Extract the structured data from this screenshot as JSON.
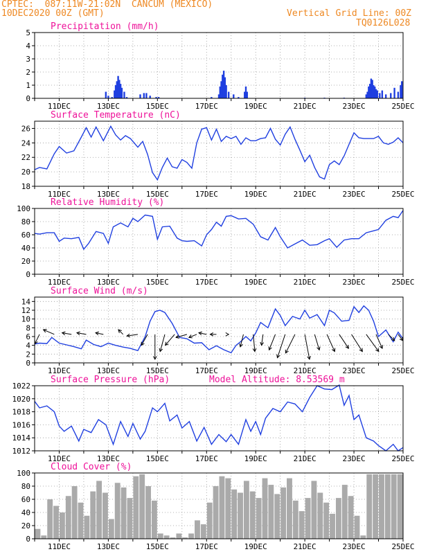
{
  "header": {
    "line1": "CPTEC:  087:11W-21:02N  CANCUM (MEXICO)",
    "line2": "10DEC2020 00Z (GMT)",
    "right1": "Vertical Grid Line: 00Z",
    "right2": "TQ0126L028"
  },
  "colors": {
    "header": "#ee8822",
    "title": "#ee1199",
    "line": "#1f3fe0",
    "bar": "#1f3fe0",
    "cloud": "#aaaaaa",
    "grid": "#999999",
    "arrow": "#000000"
  },
  "chart_data": [
    {
      "type": "bar",
      "title": "Precipitation (mm/h)",
      "ylim": [
        0,
        5
      ],
      "yticks": [
        0,
        1,
        2,
        3,
        4,
        5
      ],
      "xlim_days": [
        10.0,
        25.0
      ],
      "xticks": [
        "11DEC",
        "13DEC",
        "15DEC",
        "17DEC",
        "19DEC",
        "21DEC",
        "23DEC",
        "25DEC"
      ],
      "x": [
        12.9,
        13.0,
        13.15,
        13.25,
        13.3,
        13.35,
        13.4,
        13.45,
        13.5,
        13.55,
        13.65,
        13.75,
        14.3,
        14.45,
        14.55,
        14.7,
        14.95,
        15.05,
        17.2,
        17.5,
        17.55,
        17.6,
        17.65,
        17.7,
        17.75,
        17.8,
        17.9,
        18.1,
        18.3,
        18.55,
        18.6,
        18.65,
        21.0,
        21.8,
        22.6,
        23.5,
        23.55,
        23.6,
        23.65,
        23.7,
        23.75,
        23.8,
        23.85,
        23.9,
        23.95,
        24.05,
        24.15,
        24.3,
        24.5,
        24.65,
        24.8,
        24.9,
        24.95
      ],
      "values": [
        0.5,
        0.2,
        0.1,
        0.6,
        1.0,
        1.3,
        1.7,
        1.4,
        1.1,
        0.8,
        0.5,
        0.1,
        0.3,
        0.4,
        0.4,
        0.2,
        0.1,
        0.1,
        0.1,
        0.3,
        0.9,
        1.3,
        1.8,
        2.1,
        1.6,
        1.0,
        0.5,
        0.3,
        0.1,
        0.5,
        0.9,
        0.5,
        0.05,
        0.05,
        0.05,
        0.3,
        0.5,
        0.9,
        1.1,
        1.5,
        1.4,
        1.0,
        0.9,
        0.7,
        0.6,
        0.4,
        0.6,
        0.3,
        0.4,
        0.8,
        0.5,
        1.0,
        1.3
      ]
    },
    {
      "type": "line",
      "title": "Surface Temperature (nC)",
      "ylim": [
        18,
        27
      ],
      "yticks": [
        18,
        20,
        22,
        24,
        26
      ],
      "xlim_days": [
        10.0,
        25.0
      ],
      "xticks": [
        "11DEC",
        "13DEC",
        "15DEC",
        "17DEC",
        "19DEC",
        "21DEC",
        "23DEC",
        "25DEC"
      ],
      "x": [
        10.0,
        10.2,
        10.5,
        10.8,
        11.0,
        11.3,
        11.6,
        11.9,
        12.1,
        12.3,
        12.5,
        12.8,
        13.1,
        13.3,
        13.5,
        13.7,
        13.9,
        14.2,
        14.4,
        14.6,
        14.8,
        15.0,
        15.2,
        15.4,
        15.6,
        15.8,
        16.0,
        16.2,
        16.4,
        16.6,
        16.8,
        17.0,
        17.2,
        17.4,
        17.6,
        17.8,
        18.0,
        18.2,
        18.4,
        18.6,
        18.8,
        19.0,
        19.2,
        19.4,
        19.6,
        19.8,
        20.0,
        20.2,
        20.4,
        20.6,
        20.8,
        21.0,
        21.2,
        21.4,
        21.6,
        21.8,
        22.0,
        22.2,
        22.4,
        22.6,
        22.8,
        23.0,
        23.2,
        23.4,
        23.6,
        23.8,
        24.0,
        24.2,
        24.4,
        24.6,
        24.8,
        25.0
      ],
      "values": [
        20.3,
        20.6,
        20.4,
        22.5,
        23.5,
        22.6,
        22.9,
        24.8,
        26.1,
        24.8,
        26.2,
        24.3,
        26.3,
        25.1,
        24.4,
        25.0,
        24.6,
        23.4,
        24.2,
        22.4,
        19.9,
        18.9,
        20.6,
        21.9,
        20.7,
        20.5,
        21.7,
        21.3,
        20.5,
        24.0,
        25.9,
        26.1,
        24.4,
        25.9,
        24.2,
        24.9,
        24.6,
        24.9,
        23.8,
        24.7,
        24.3,
        24.3,
        24.6,
        24.7,
        26.0,
        24.5,
        23.7,
        25.2,
        26.2,
        24.5,
        23.0,
        21.4,
        22.3,
        20.6,
        19.3,
        19.0,
        21.0,
        21.5,
        21.0,
        22.2,
        23.8,
        25.4,
        24.7,
        24.6,
        24.6,
        24.6,
        24.9,
        24.0,
        23.8,
        24.1,
        24.7,
        24.0
      ]
    },
    {
      "type": "line",
      "title": "Relative Humidity (%)",
      "ylim": [
        0,
        100
      ],
      "yticks": [
        0,
        20,
        40,
        60,
        80,
        100
      ],
      "xlim_days": [
        10.0,
        25.0
      ],
      "xticks": [
        "11DEC",
        "13DEC",
        "15DEC",
        "17DEC",
        "19DEC",
        "21DEC",
        "23DEC",
        "25DEC"
      ],
      "x": [
        10.0,
        10.2,
        10.5,
        10.8,
        11.0,
        11.2,
        11.5,
        11.8,
        12.0,
        12.2,
        12.5,
        12.8,
        13.0,
        13.2,
        13.5,
        13.8,
        14.0,
        14.2,
        14.5,
        14.8,
        15.0,
        15.2,
        15.5,
        15.8,
        16.0,
        16.2,
        16.5,
        16.8,
        17.0,
        17.2,
        17.4,
        17.6,
        17.8,
        18.0,
        18.3,
        18.6,
        18.9,
        19.2,
        19.5,
        19.8,
        20.0,
        20.3,
        20.6,
        20.9,
        21.2,
        21.5,
        21.8,
        22.0,
        22.3,
        22.6,
        22.9,
        23.2,
        23.5,
        23.8,
        24.0,
        24.3,
        24.6,
        24.8,
        25.0
      ],
      "values": [
        62,
        61,
        63,
        63,
        50,
        55,
        54,
        56,
        38,
        47,
        65,
        62,
        47,
        72,
        78,
        72,
        85,
        80,
        90,
        88,
        53,
        72,
        73,
        55,
        51,
        50,
        51,
        43,
        60,
        68,
        79,
        73,
        88,
        89,
        84,
        85,
        76,
        57,
        52,
        71,
        57,
        40,
        46,
        52,
        44,
        45,
        51,
        54,
        41,
        52,
        54,
        54,
        63,
        66,
        68,
        82,
        88,
        86,
        97
      ]
    },
    {
      "type": "line",
      "title": "Surface Wind (m/s)",
      "ylim": [
        0,
        15
      ],
      "yticks": [
        0,
        2,
        4,
        6,
        8,
        10,
        12,
        14
      ],
      "xlim_days": [
        10.0,
        25.0
      ],
      "xticks": [
        "11DEC",
        "13DEC",
        "15DEC",
        "17DEC",
        "19DEC",
        "21DEC",
        "23DEC",
        "25DEC"
      ],
      "x": [
        10.0,
        10.2,
        10.5,
        10.7,
        11.0,
        11.3,
        11.6,
        11.9,
        12.1,
        12.4,
        12.7,
        13.0,
        13.3,
        13.6,
        13.9,
        14.2,
        14.5,
        14.7,
        14.9,
        15.1,
        15.3,
        15.6,
        15.9,
        16.2,
        16.5,
        16.8,
        17.1,
        17.4,
        17.7,
        18.0,
        18.2,
        18.4,
        18.6,
        18.8,
        19.0,
        19.2,
        19.5,
        19.8,
        20.0,
        20.2,
        20.5,
        20.8,
        21.0,
        21.2,
        21.5,
        21.8,
        22.0,
        22.2,
        22.5,
        22.8,
        23.0,
        23.2,
        23.4,
        23.6,
        23.8,
        24.0,
        24.3,
        24.6,
        24.8,
        25.0
      ],
      "values": [
        4.3,
        4.5,
        4.4,
        5.8,
        4.5,
        4.1,
        3.7,
        3.2,
        5.2,
        4.2,
        3.7,
        4.5,
        4.0,
        3.6,
        3.3,
        2.8,
        6.0,
        9.5,
        11.7,
        12.0,
        11.5,
        9.0,
        5.8,
        5.5,
        4.5,
        4.6,
        3.0,
        3.9,
        3.0,
        2.3,
        4.0,
        4.9,
        6.0,
        5.0,
        6.8,
        9.2,
        8.0,
        12.3,
        10.8,
        8.5,
        10.6,
        10.0,
        12.0,
        10.2,
        11.0,
        8.5,
        12.0,
        11.4,
        9.5,
        9.7,
        12.8,
        11.5,
        13.0,
        12.0,
        9.5,
        6.0,
        7.5,
        4.8,
        7.0,
        5.5
      ],
      "wind_barbs": {
        "x": [
          10.2,
          10.8,
          11.5,
          12.1,
          12.8,
          13.6,
          14.2,
          14.6,
          14.9,
          15.3,
          15.7,
          16.2,
          16.6,
          17.0,
          17.4,
          17.9,
          18.5,
          18.9,
          19.3,
          19.8,
          20.2,
          20.6,
          21.0,
          21.4,
          21.9,
          22.4,
          22.9,
          23.5,
          23.9,
          24.4,
          24.8
        ],
        "u": [
          -1.5,
          -3.5,
          -3.0,
          -3.0,
          -2.5,
          -1.5,
          -3.5,
          -2.0,
          0.0,
          -1.5,
          -3.0,
          -3.5,
          -2.5,
          -2.5,
          -2.0,
          0.0,
          -1.0,
          0.5,
          -0.5,
          -2.0,
          -2.5,
          -3.0,
          1.5,
          1.5,
          2.5,
          3.0,
          3.5,
          4.0,
          2.0,
          2.0,
          1.5
        ],
        "v": [
          -3.0,
          1.5,
          0.5,
          0.5,
          0.5,
          1.5,
          -0.5,
          -3.5,
          -8.0,
          -5.5,
          -3.5,
          -1.0,
          -1.0,
          0.5,
          0.0,
          0.0,
          -4.0,
          -5.5,
          -3.5,
          -5.0,
          -7.5,
          -6.0,
          -8.0,
          -5.0,
          -5.5,
          -4.5,
          -5.5,
          -5.5,
          -4.5,
          -2.0,
          -2.0
        ]
      }
    },
    {
      "type": "line",
      "title": "Surface Pressure (hPa)",
      "note": "Model Altitude: 8.53569 m",
      "ylim": [
        1012,
        1022
      ],
      "yticks": [
        1012,
        1014,
        1016,
        1018,
        1020,
        1022
      ],
      "xlim_days": [
        10.0,
        25.0
      ],
      "xticks": [
        "11DEC",
        "13DEC",
        "15DEC",
        "17DEC",
        "19DEC",
        "21DEC",
        "23DEC",
        "25DEC"
      ],
      "x": [
        10.0,
        10.2,
        10.5,
        10.8,
        11.0,
        11.2,
        11.5,
        11.8,
        12.0,
        12.3,
        12.6,
        12.9,
        13.2,
        13.5,
        13.8,
        14.0,
        14.3,
        14.5,
        14.8,
        15.0,
        15.3,
        15.5,
        15.8,
        16.0,
        16.3,
        16.6,
        16.9,
        17.2,
        17.5,
        17.8,
        18.0,
        18.3,
        18.6,
        18.8,
        19.0,
        19.2,
        19.4,
        19.7,
        20.0,
        20.3,
        20.6,
        20.9,
        21.2,
        21.5,
        21.8,
        22.1,
        22.4,
        22.6,
        22.8,
        23.0,
        23.2,
        23.5,
        23.8,
        24.0,
        24.3,
        24.6,
        24.8,
        25.0
      ],
      "values": [
        1019.6,
        1018.6,
        1018.9,
        1018.0,
        1015.8,
        1015.0,
        1015.8,
        1013.5,
        1015.3,
        1014.8,
        1016.8,
        1016.0,
        1013.0,
        1016.5,
        1014.2,
        1016.2,
        1013.8,
        1015.0,
        1018.6,
        1018.0,
        1019.3,
        1016.6,
        1017.5,
        1015.5,
        1016.5,
        1013.5,
        1015.6,
        1013.0,
        1014.5,
        1013.4,
        1014.5,
        1013.0,
        1016.8,
        1015.0,
        1016.5,
        1014.5,
        1017.0,
        1018.5,
        1018.0,
        1019.5,
        1019.2,
        1018.0,
        1020.2,
        1022.0,
        1021.5,
        1021.4,
        1022.1,
        1019.0,
        1020.5,
        1016.8,
        1017.5,
        1014.0,
        1013.5,
        1012.8,
        1012.0,
        1013.0,
        1012.0,
        1012.5
      ]
    },
    {
      "type": "bar",
      "title": "Cloud Cover (%)",
      "ylim": [
        0,
        100
      ],
      "yticks": [
        0,
        20,
        40,
        60,
        80,
        100
      ],
      "xlim_days": [
        10.0,
        25.0
      ],
      "xticks": [
        "11DEC",
        "13DEC",
        "15DEC",
        "17DEC",
        "19DEC",
        "21DEC",
        "23DEC",
        "25DEC"
      ],
      "x": [
        10.0,
        10.25,
        10.5,
        10.75,
        11.0,
        11.25,
        11.5,
        11.75,
        12.0,
        12.25,
        12.5,
        12.75,
        13.0,
        13.25,
        13.5,
        13.75,
        14.0,
        14.25,
        14.5,
        14.75,
        15.0,
        15.25,
        15.5,
        15.75,
        16.0,
        16.25,
        16.5,
        16.75,
        17.0,
        17.25,
        17.5,
        17.75,
        18.0,
        18.25,
        18.5,
        18.75,
        19.0,
        19.25,
        19.5,
        19.75,
        20.0,
        20.25,
        20.5,
        20.75,
        21.0,
        21.25,
        21.5,
        21.75,
        22.0,
        22.25,
        22.5,
        22.75,
        23.0,
        23.25,
        23.5,
        23.75,
        24.0,
        24.25,
        24.5,
        24.75
      ],
      "values": [
        15,
        5,
        60,
        50,
        40,
        65,
        80,
        55,
        35,
        72,
        88,
        70,
        30,
        85,
        78,
        62,
        95,
        98,
        80,
        58,
        8,
        5,
        2,
        8,
        2,
        8,
        28,
        22,
        55,
        80,
        95,
        92,
        75,
        70,
        88,
        72,
        62,
        92,
        82,
        68,
        78,
        92,
        58,
        42,
        62,
        88,
        70,
        55,
        38,
        62,
        82,
        65,
        35,
        5,
        98,
        98,
        98,
        98,
        98,
        98
      ]
    }
  ]
}
